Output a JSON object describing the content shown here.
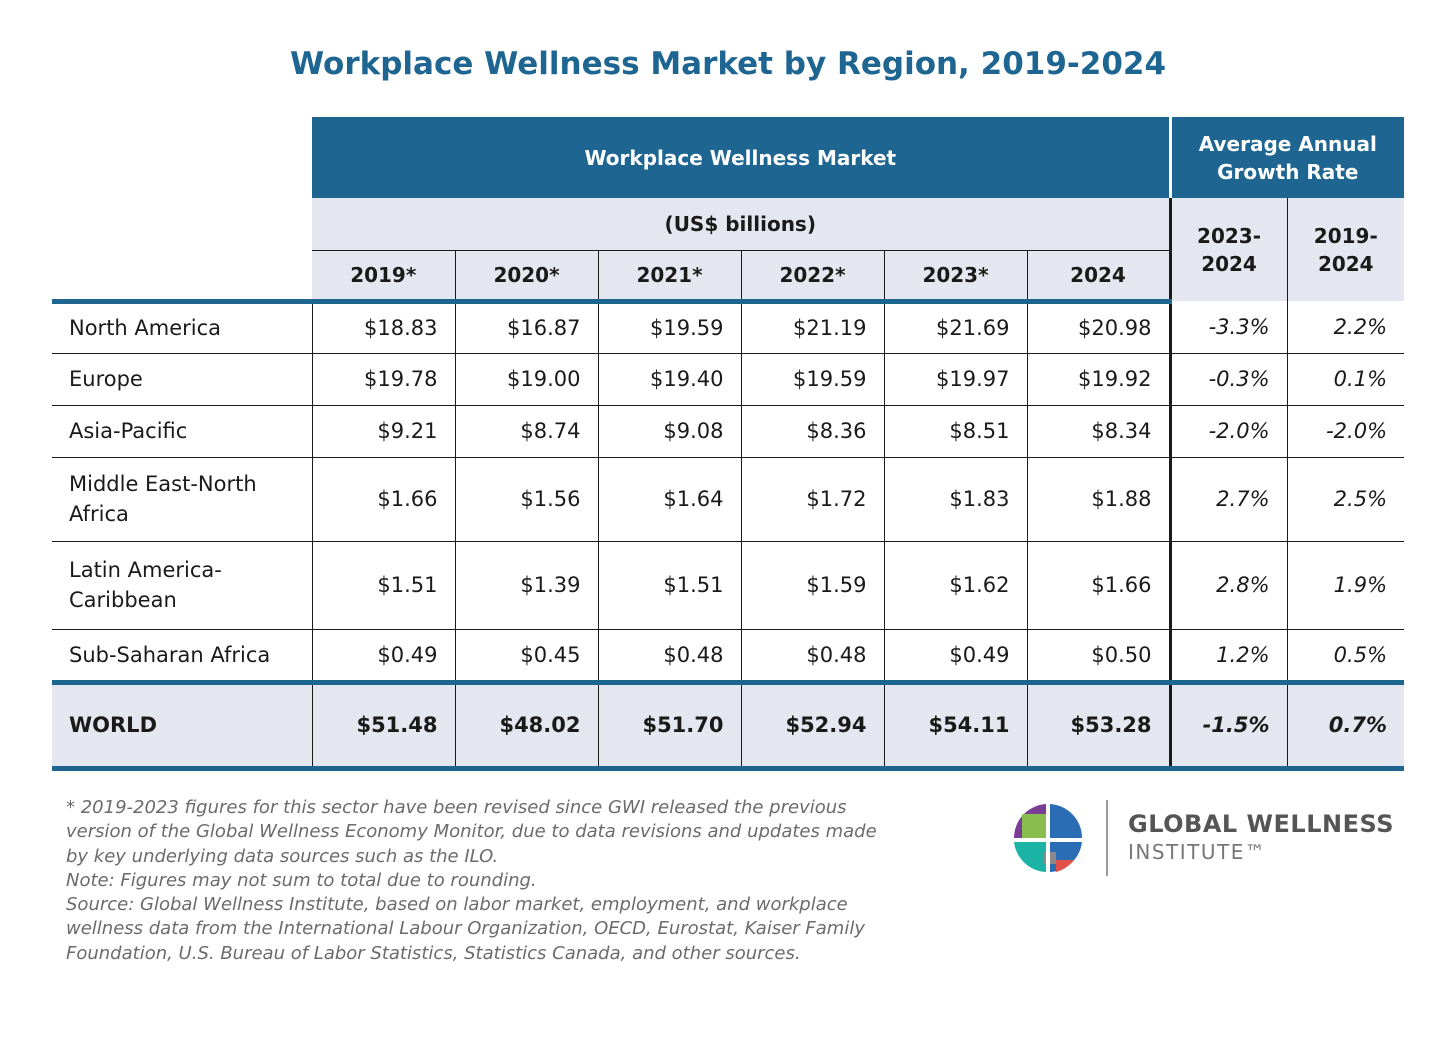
{
  "title": "Workplace Wellness Market by Region, 2019-2024",
  "header": {
    "group_market": "Workplace Wellness Market",
    "group_growth_line1": "Average Annual",
    "group_growth_line2": "Growth Rate",
    "units": "(US$ billions)",
    "years": [
      "2019*",
      "2020*",
      "2021*",
      "2022*",
      "2023*",
      "2024"
    ],
    "growth_periods": [
      {
        "line1": "2023-",
        "line2": "2024"
      },
      {
        "line1": "2019-",
        "line2": "2024"
      }
    ]
  },
  "chart_data": {
    "type": "table",
    "title": "Workplace Wellness Market by Region, 2019-2024",
    "columns": [
      "",
      "2019*",
      "2020*",
      "2021*",
      "2022*",
      "2023*",
      "2024",
      "2023-2024",
      "2019-2024"
    ],
    "rows": [
      {
        "region": "North America",
        "values": [
          "$18.83",
          "$16.87",
          "$19.59",
          "$21.19",
          "$21.69",
          "$20.98"
        ],
        "growth": [
          "-3.3%",
          "2.2%"
        ]
      },
      {
        "region": "Europe",
        "values": [
          "$19.78",
          "$19.00",
          "$19.40",
          "$19.59",
          "$19.97",
          "$19.92"
        ],
        "growth": [
          "-0.3%",
          "0.1%"
        ]
      },
      {
        "region": "Asia-Pacific",
        "values": [
          "$9.21",
          "$8.74",
          "$9.08",
          "$8.36",
          "$8.51",
          "$8.34"
        ],
        "growth": [
          "-2.0%",
          "-2.0%"
        ]
      },
      {
        "region": "Middle East-North Africa",
        "values": [
          "$1.66",
          "$1.56",
          "$1.64",
          "$1.72",
          "$1.83",
          "$1.88"
        ],
        "growth": [
          "2.7%",
          "2.5%"
        ]
      },
      {
        "region": "Latin America-Caribbean",
        "values": [
          "$1.51",
          "$1.39",
          "$1.51",
          "$1.59",
          "$1.62",
          "$1.66"
        ],
        "growth": [
          "2.8%",
          "1.9%"
        ]
      },
      {
        "region": "Sub-Saharan Africa",
        "values": [
          "$0.49",
          "$0.45",
          "$0.48",
          "$0.48",
          "$0.49",
          "$0.50"
        ],
        "growth": [
          "1.2%",
          "0.5%"
        ]
      }
    ],
    "total": {
      "region": "WORLD",
      "values": [
        "$51.48",
        "$48.02",
        "$51.70",
        "$52.94",
        "$54.11",
        "$53.28"
      ],
      "growth": [
        "-1.5%",
        "0.7%"
      ]
    }
  },
  "footnotes": [
    "* 2019-2023 figures for this sector have been revised since GWI released the previous",
    "version of the Global Wellness Economy Monitor, due to data revisions and updates made",
    "by key underlying data sources such as the ILO.",
    "Note: Figures may not sum to total due to rounding.",
    "Source: Global Wellness Institute, based on labor market, employment, and workplace",
    "wellness data from the International Labour Organization, OECD, Eurostat, Kaiser Family",
    "Foundation, U.S. Bureau of Labor Statistics, Statistics Canada, and other sources."
  ],
  "logo": {
    "name": "GLOBAL WELLNESS",
    "sub": "INSTITUTE™",
    "icon": "gwi-logo-icon"
  },
  "colors": {
    "header_blue": "#1e6691",
    "header_grey": "#e4e7ef",
    "title": "#1e6691"
  }
}
